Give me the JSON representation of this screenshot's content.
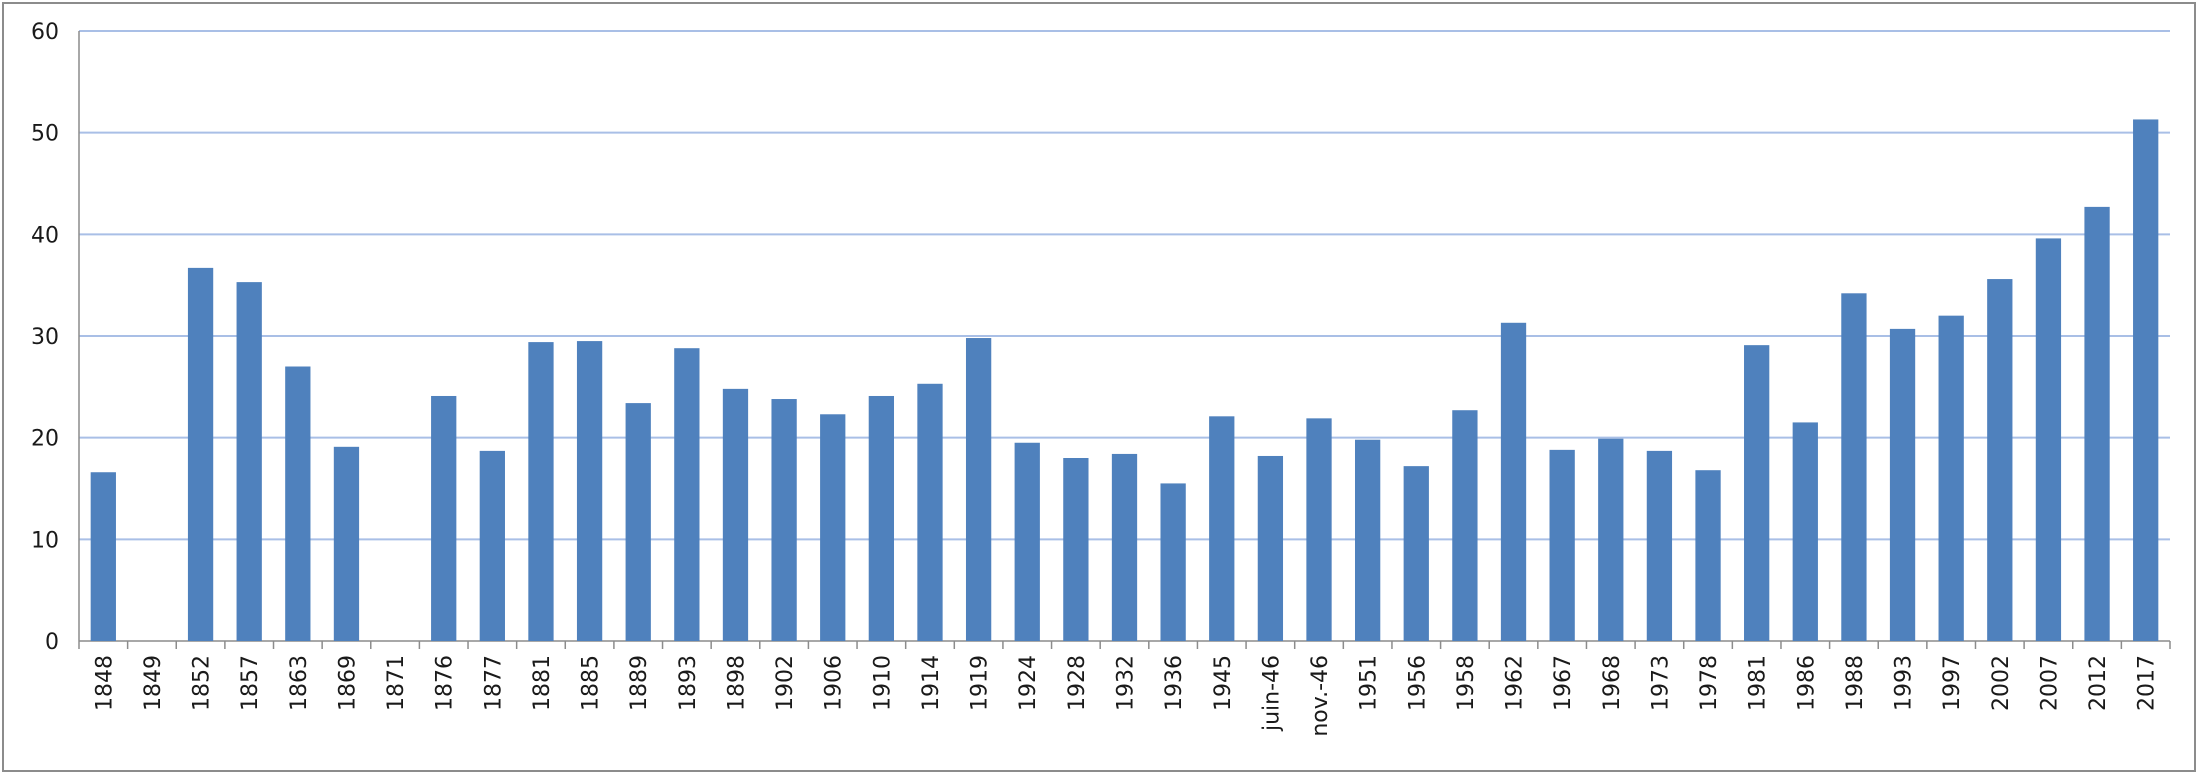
{
  "chart_data": {
    "type": "bar",
    "title": "",
    "xlabel": "",
    "ylabel": "",
    "ylim": [
      0,
      60
    ],
    "yticks": [
      0,
      10,
      20,
      30,
      40,
      50,
      60
    ],
    "grid": true,
    "legend": "none",
    "bar_color": "#4f81bd",
    "grid_color": "#a9bfe6",
    "categories": [
      "1848",
      "1849",
      "1852",
      "1857",
      "1863",
      "1869",
      "1871",
      "1876",
      "1877",
      "1881",
      "1885",
      "1889",
      "1893",
      "1898",
      "1902",
      "1906",
      "1910",
      "1914",
      "1919",
      "1924",
      "1928",
      "1932",
      "1936",
      "1945",
      "juin-46",
      "nov.-46",
      "1951",
      "1956",
      "1958",
      "1962",
      "1967",
      "1968",
      "1973",
      "1978",
      "1981",
      "1986",
      "1988",
      "1993",
      "1997",
      "2002",
      "2007",
      "2012",
      "2017"
    ],
    "values": [
      16.6,
      0,
      36.7,
      35.3,
      27,
      19.1,
      0,
      24.1,
      18.7,
      29.4,
      29.5,
      23.4,
      28.8,
      24.8,
      23.8,
      22.3,
      24.1,
      25.3,
      29.8,
      19.5,
      18,
      18.4,
      15.5,
      22.1,
      18.2,
      21.9,
      19.8,
      17.2,
      22.7,
      31.3,
      18.8,
      19.9,
      18.7,
      16.8,
      29.1,
      21.5,
      34.2,
      30.7,
      32,
      35.6,
      39.6,
      42.7,
      51.3
    ]
  }
}
